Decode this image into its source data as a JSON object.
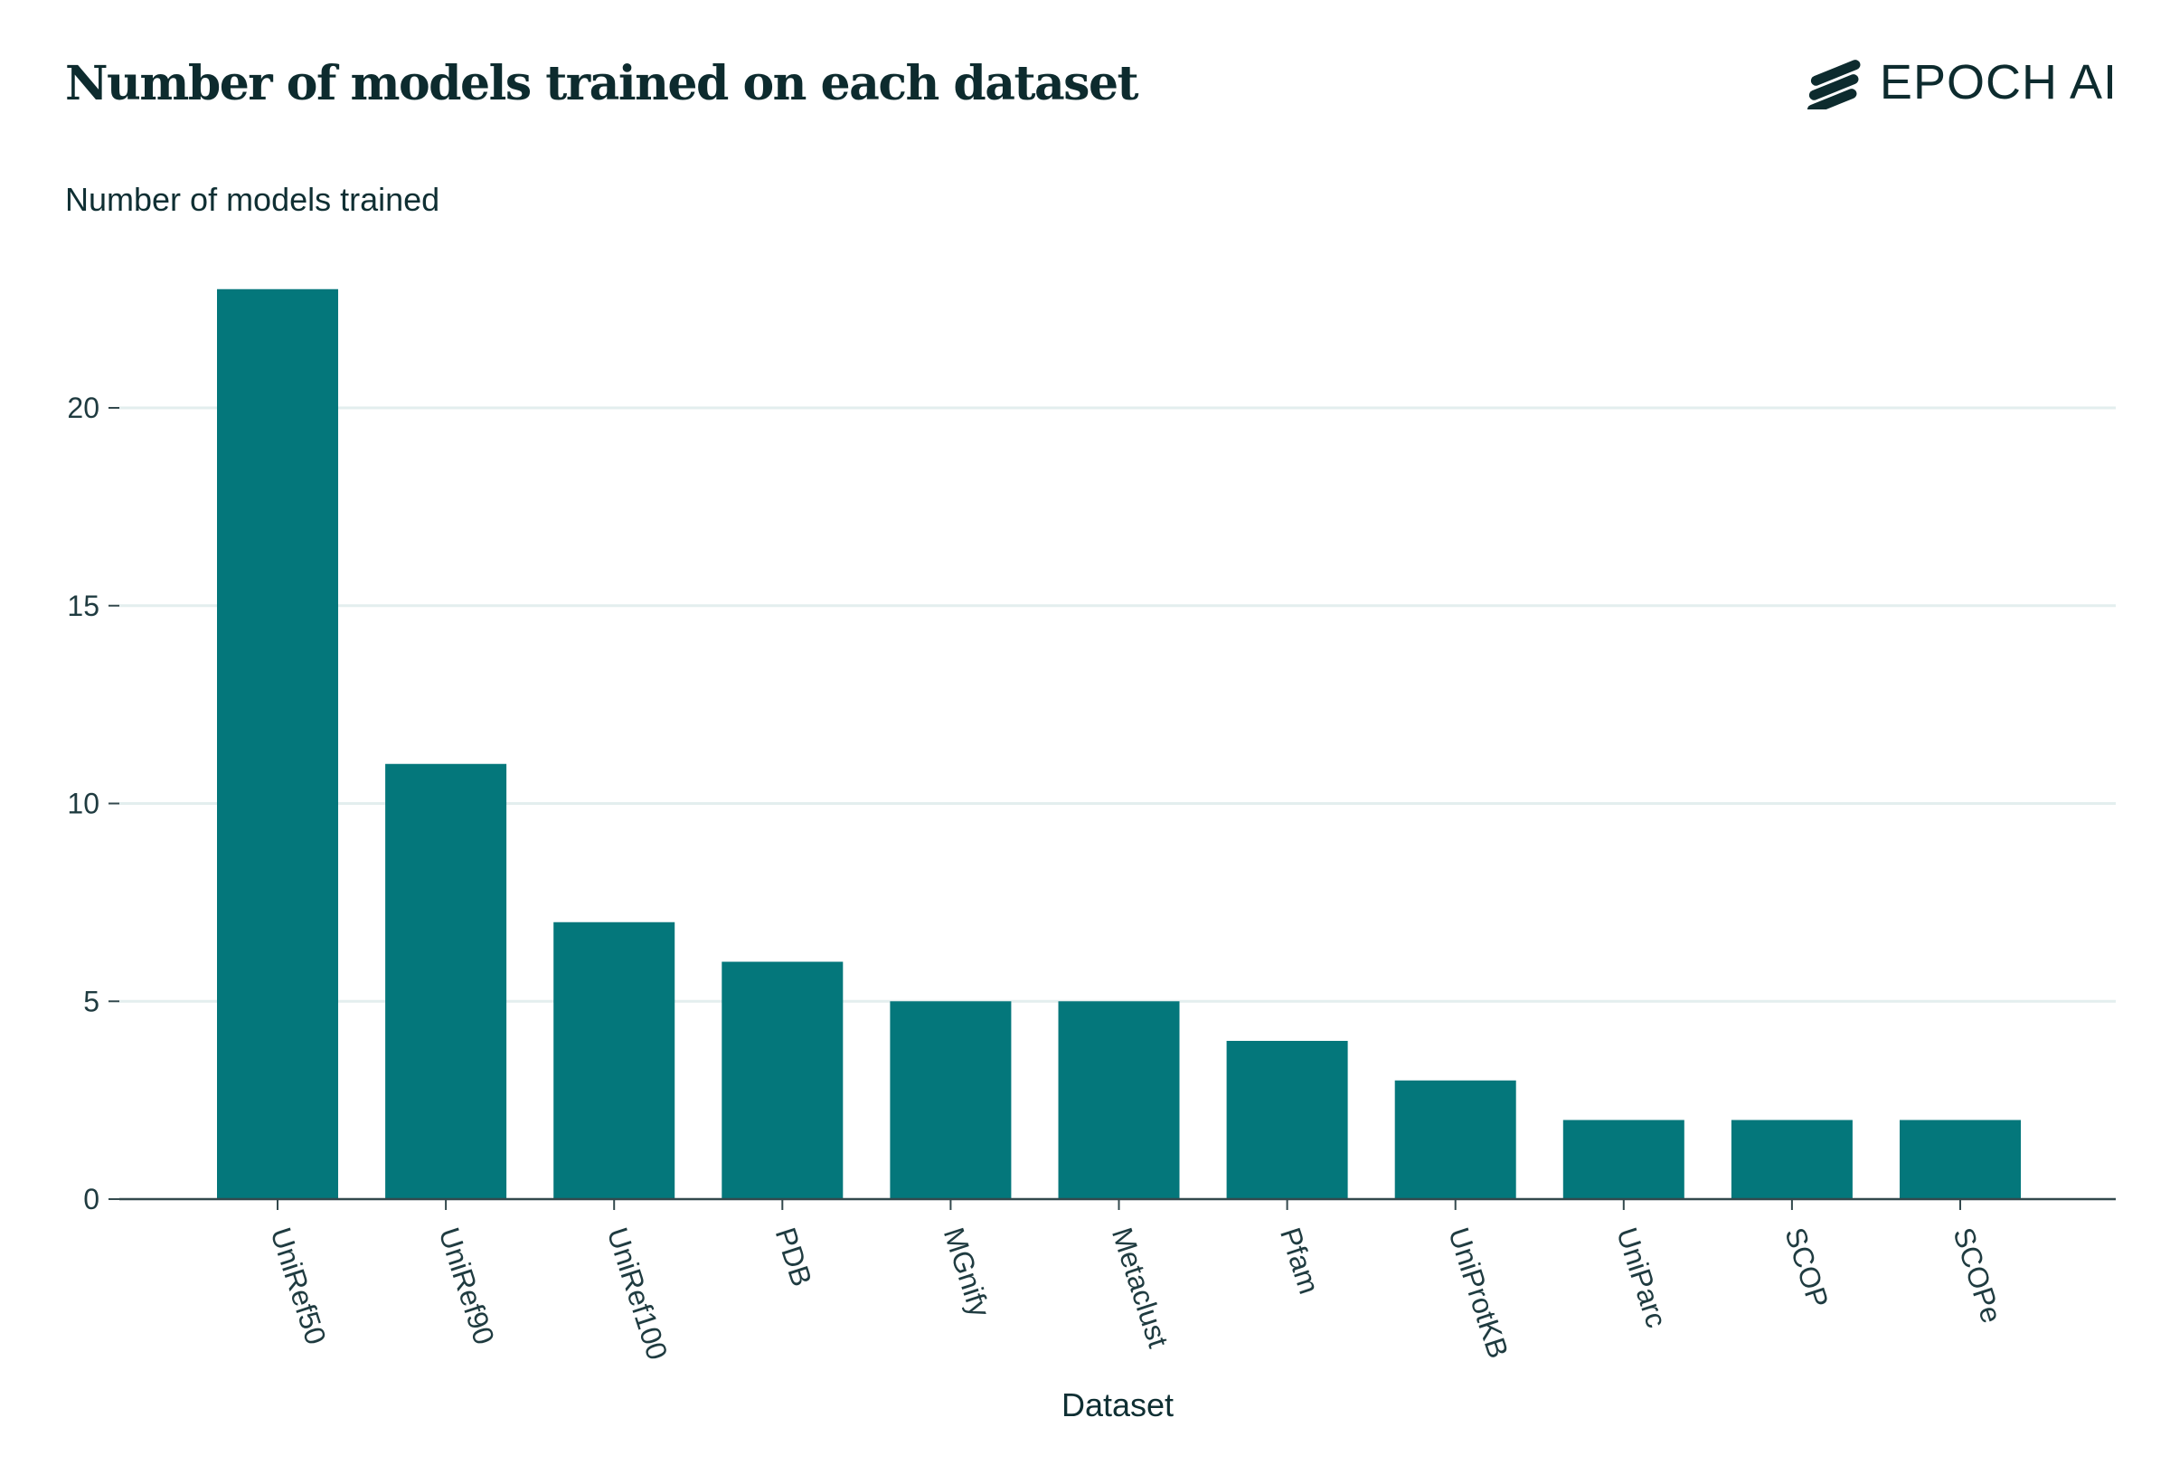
{
  "header": {
    "title": "Number of models trained on each dataset",
    "logo_text": "EPOCH AI",
    "logo_icon": "epoch-stripes-icon"
  },
  "colors": {
    "bar": "#04777b",
    "grid": "#e3eeee",
    "axis": "#33494d",
    "text": "#0f2f33"
  },
  "chart_data": {
    "type": "bar",
    "title": "Number of models trained on each dataset",
    "xlabel": "Dataset",
    "ylabel": "Number of models trained",
    "categories": [
      "UniRef50",
      "UniRef90",
      "UniRef100",
      "PDB",
      "MGnify",
      "Metaclust",
      "Pfam",
      "UniProtKB",
      "UniParc",
      "SCOP",
      "SCOPe"
    ],
    "values": [
      23,
      11,
      7,
      6,
      5,
      5,
      4,
      3,
      2,
      2,
      2
    ],
    "ylim": [
      0,
      24
    ],
    "yticks": [
      0,
      5,
      10,
      15,
      20
    ],
    "grid": true,
    "legend": "none",
    "x_tick_rotation": "rotated"
  }
}
